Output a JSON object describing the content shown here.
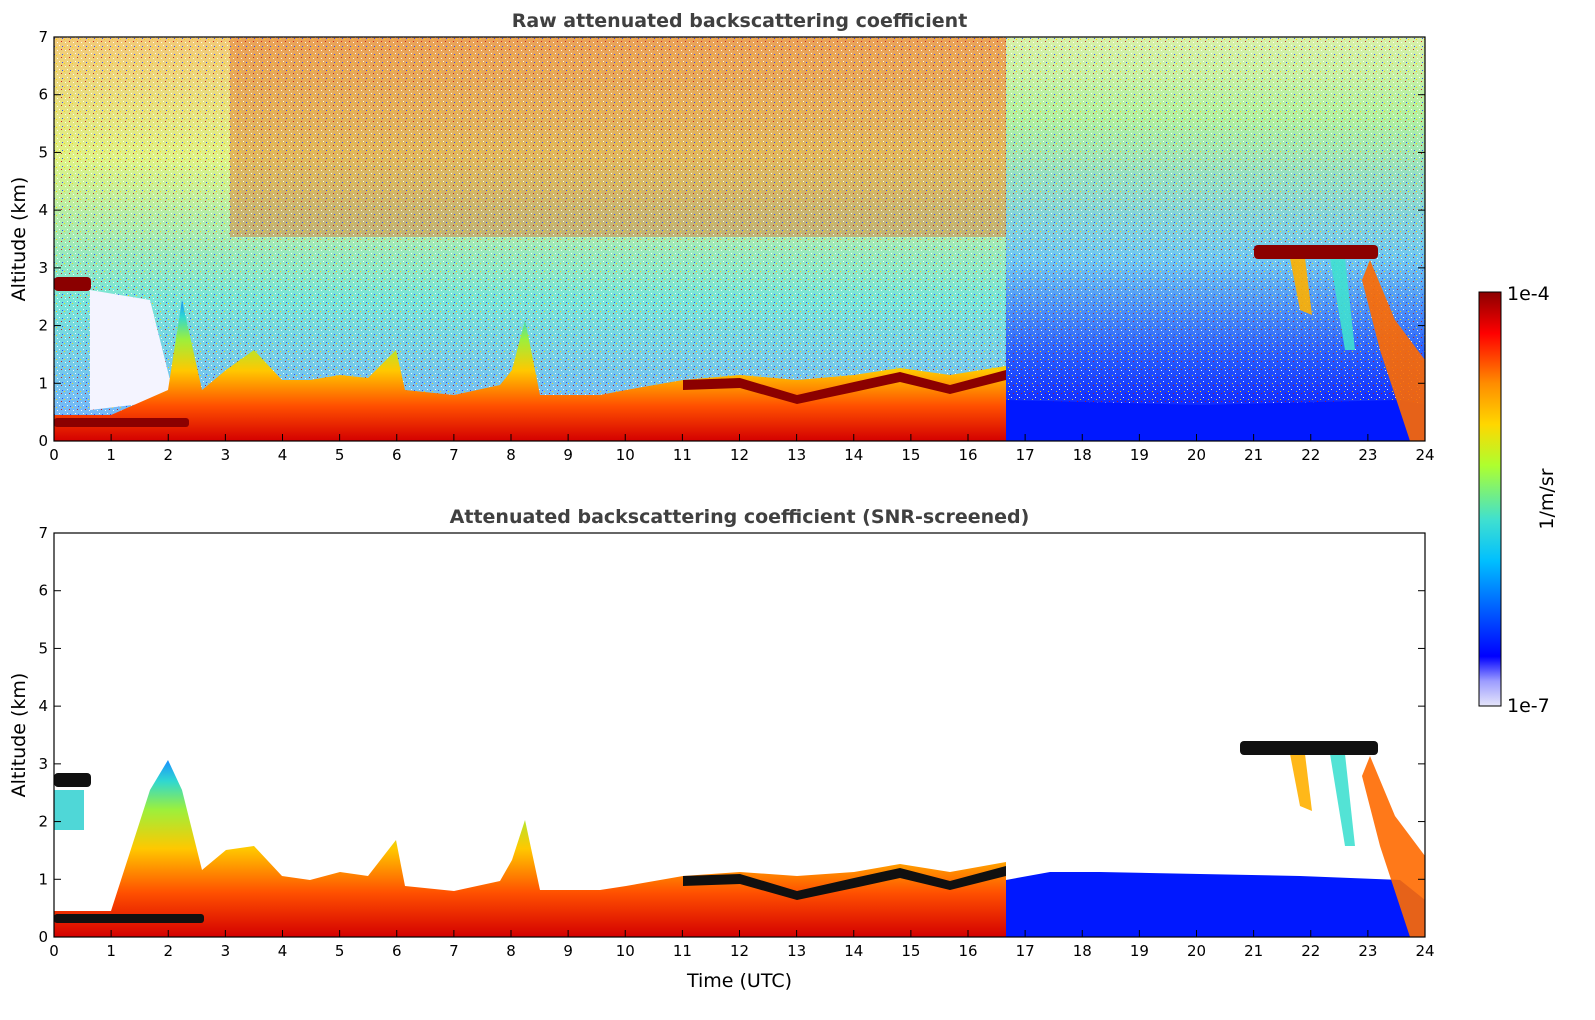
{
  "chart_data": [
    {
      "type": "heatmap",
      "title": "Raw attenuated backscattering coefficient",
      "xlabel": "",
      "ylabel": "Altitude (km)",
      "xlim": [
        0,
        24
      ],
      "ylim": [
        0,
        7
      ],
      "xticks": [
        "0",
        "1",
        "2",
        "3",
        "4",
        "5",
        "6",
        "7",
        "8",
        "9",
        "10",
        "11",
        "12",
        "13",
        "14",
        "15",
        "16",
        "17",
        "18",
        "19",
        "20",
        "21",
        "22",
        "23",
        "24"
      ],
      "yticks": [
        "0",
        "1",
        "2",
        "3",
        "4",
        "5",
        "6",
        "7"
      ],
      "grid": false,
      "layers": [
        {
          "type": "boundary_layer",
          "tops": [
            [
              0,
              0.45
            ],
            [
              1,
              0.45
            ],
            [
              2,
              0.9
            ],
            [
              2.6,
              0.5
            ],
            [
              3,
              1.3
            ],
            [
              4,
              1.0
            ],
            [
              5,
              1.1
            ],
            [
              6,
              1.5
            ],
            [
              6.5,
              0.8
            ],
            [
              7,
              0.8
            ],
            [
              8,
              1.0
            ],
            [
              8.4,
              1.5
            ],
            [
              9,
              0.8
            ],
            [
              10,
              0.9
            ],
            [
              11,
              1.1
            ],
            [
              12,
              1.1
            ],
            [
              13,
              1.0
            ],
            [
              14,
              1.2
            ],
            [
              15,
              1.1
            ],
            [
              16,
              1.2
            ],
            [
              16.6,
              1.3
            ],
            [
              17,
              0.5
            ],
            [
              18,
              0.5
            ],
            [
              20,
              0.5
            ],
            [
              22,
              0.5
            ],
            [
              23,
              0.5
            ],
            [
              24,
              0.5
            ]
          ]
        },
        {
          "type": "cloud",
          "x": [
            21,
            23.3
          ],
          "base_km": 3.1,
          "top_km": 3.4
        },
        {
          "type": "cloud",
          "x": [
            0,
            0.65
          ],
          "base_km": 2.6,
          "top_km": 2.85
        },
        {
          "type": "cloud",
          "x": [
            0,
            2.4
          ],
          "base_km": 0.25,
          "top_km": 0.4
        },
        {
          "type": "cloud",
          "x": [
            11,
            16.6
          ],
          "base_km": 0.6,
          "top_km": 1.25
        }
      ]
    },
    {
      "type": "heatmap",
      "title": "Attenuated backscattering coefficient (SNR-screened)",
      "xlabel": "Time (UTC)",
      "ylabel": "Altitude (km)",
      "xlim": [
        0,
        24
      ],
      "ylim": [
        0,
        7
      ],
      "xticks": [
        "0",
        "1",
        "2",
        "3",
        "4",
        "5",
        "6",
        "7",
        "8",
        "9",
        "10",
        "11",
        "12",
        "13",
        "14",
        "15",
        "16",
        "17",
        "18",
        "19",
        "20",
        "21",
        "22",
        "23",
        "24"
      ],
      "yticks": [
        "0",
        "1",
        "2",
        "3",
        "4",
        "5",
        "6",
        "7"
      ],
      "grid": false
    }
  ],
  "colorbar": {
    "label": "1/m/sr",
    "max_label": "1e-4",
    "min_label": "1e-7",
    "range": [
      1e-07,
      0.0001
    ],
    "colormap": [
      "#e6e6fa",
      "#0000ff",
      "#00bfff",
      "#40e0d0",
      "#adff2f",
      "#ffd700",
      "#ff8c00",
      "#ff0000",
      "#8b0000"
    ]
  }
}
